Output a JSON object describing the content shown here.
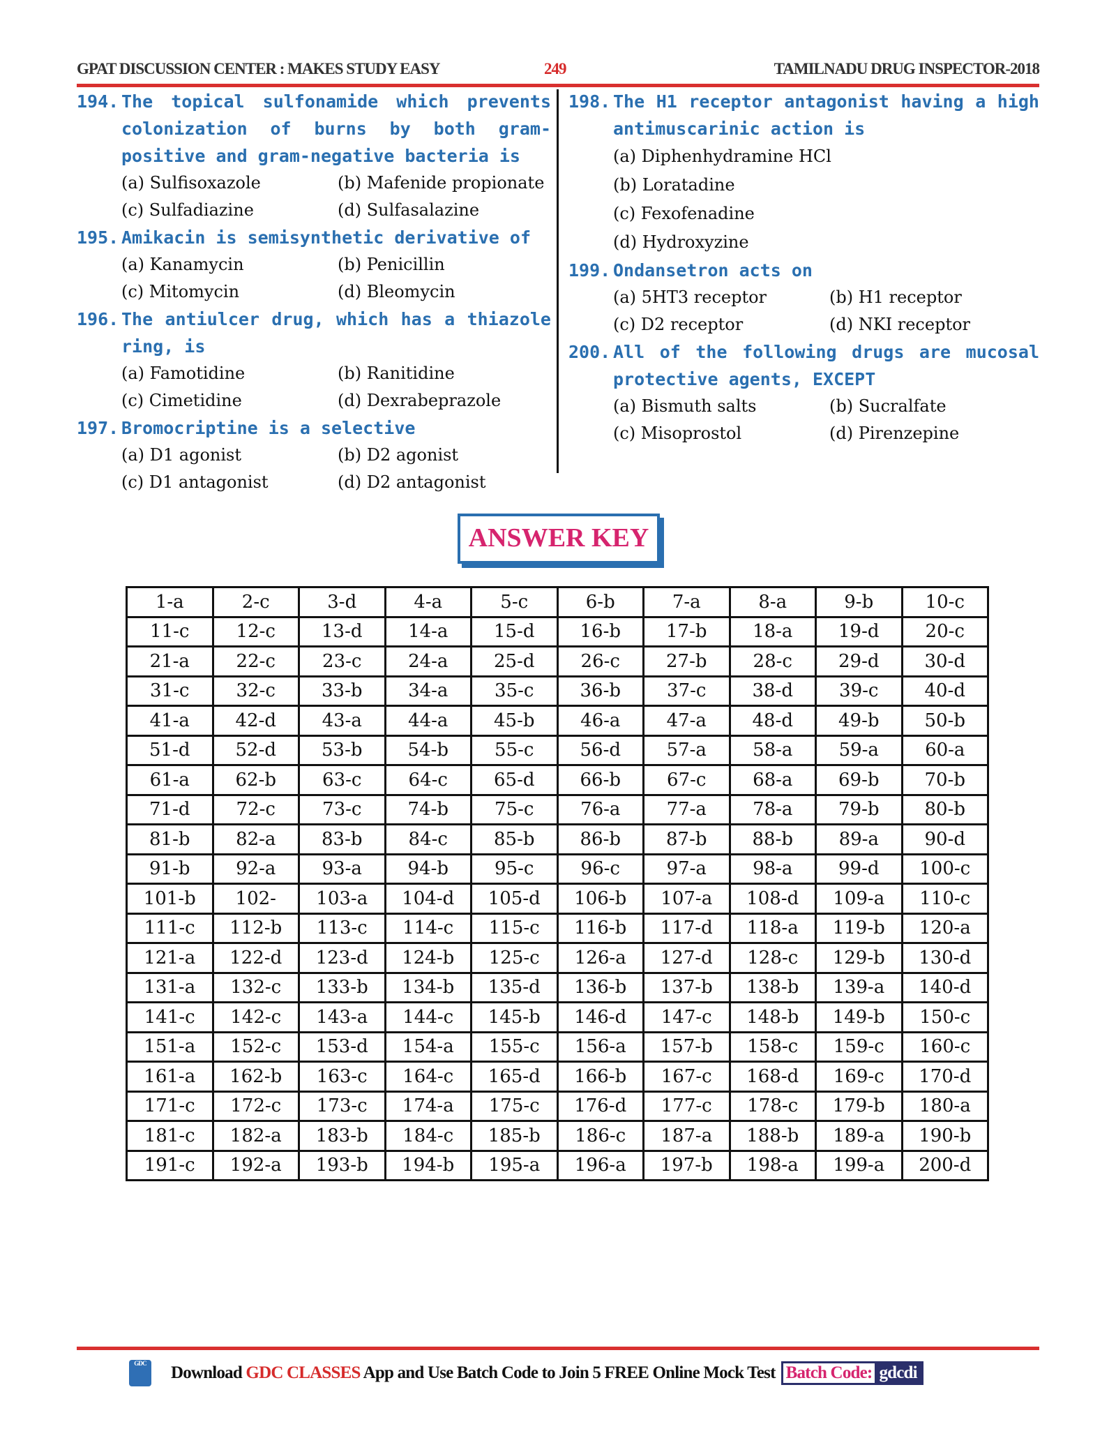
{
  "header": {
    "left": "GPAT DISCUSSION CENTER : MAKES STUDY EASY",
    "page": "249",
    "right": "TAMILNADU DRUG INSPECTOR-2018"
  },
  "questions_left": [
    {
      "num": "194.",
      "text": "The topical sulfonamide which prevents colonization of burns by both gram-positive and gram-negative bacteria is",
      "options": [
        "(a) Sulfisoxazole",
        "(b) Mafenide propionate",
        "(c) Sulfadiazine",
        "(d) Sulfasalazine"
      ]
    },
    {
      "num": "195.",
      "text": "Amikacin is semisynthetic derivative of",
      "options": [
        "(a) Kanamycin",
        "(b) Penicillin",
        "(c) Mitomycin",
        "(d) Bleomycin"
      ]
    },
    {
      "num": "196.",
      "text": "The antiulcer drug, which has a thiazole ring, is",
      "options": [
        "(a) Famotidine",
        "(b) Ranitidine",
        "(c) Cimetidine",
        "(d) Dexrabeprazole"
      ]
    },
    {
      "num": "197.",
      "text": "Bromocriptine is a selective",
      "options": [
        "(a) D1 agonist",
        "(b) D2 agonist",
        "(c) D1 antagonist",
        "(d) D2 antagonist"
      ]
    }
  ],
  "questions_right": [
    {
      "num": "198.",
      "text": "The H1 receptor antagonist having a high antimuscarinic action is",
      "options": [
        "(a) Diphenhydramine HCl",
        "(b) Loratadine",
        "(c) Fexofenadine",
        "(d) Hydroxyzine"
      ]
    },
    {
      "num": "199.",
      "text": "Ondansetron acts on",
      "options": [
        "(a) 5HT3 receptor",
        "(b) H1 receptor",
        "(c) D2 receptor",
        "(d) NKI receptor"
      ]
    },
    {
      "num": "200.",
      "text": "All of the following drugs are mucosal protective agents, EXCEPT",
      "options": [
        "(a) Bismuth salts",
        "(b) Sucralfate",
        "(c) Misoprostol",
        "(d) Pirenzepine"
      ]
    }
  ],
  "answer_key_title": "ANSWER KEY",
  "answers": [
    [
      "1-a",
      "2-c",
      "3-d",
      "4-a",
      "5-c",
      "6-b",
      "7-a",
      "8-a",
      "9-b",
      "10-c"
    ],
    [
      "11-c",
      "12-c",
      "13-d",
      "14-a",
      "15-d",
      "16-b",
      "17-b",
      "18-a",
      "19-d",
      "20-c"
    ],
    [
      "21-a",
      "22-c",
      "23-c",
      "24-a",
      "25-d",
      "26-c",
      "27-b",
      "28-c",
      "29-d",
      "30-d"
    ],
    [
      "31-c",
      "32-c",
      "33-b",
      "34-a",
      "35-c",
      "36-b",
      "37-c",
      "38-d",
      "39-c",
      "40-d"
    ],
    [
      "41-a",
      "42-d",
      "43-a",
      "44-a",
      "45-b",
      "46-a",
      "47-a",
      "48-d",
      "49-b",
      "50-b"
    ],
    [
      "51-d",
      "52-d",
      "53-b",
      "54-b",
      "55-c",
      "56-d",
      "57-a",
      "58-a",
      "59-a",
      "60-a"
    ],
    [
      "61-a",
      "62-b",
      "63-c",
      "64-c",
      "65-d",
      "66-b",
      "67-c",
      "68-a",
      "69-b",
      "70-b"
    ],
    [
      "71-d",
      "72-c",
      "73-c",
      "74-b",
      "75-c",
      "76-a",
      "77-a",
      "78-a",
      "79-b",
      "80-b"
    ],
    [
      "81-b",
      "82-a",
      "83-b",
      "84-c",
      "85-b",
      "86-b",
      "87-b",
      "88-b",
      "89-a",
      "90-d"
    ],
    [
      "91-b",
      "92-a",
      "93-a",
      "94-b",
      "95-c",
      "96-c",
      "97-a",
      "98-a",
      "99-d",
      "100-c"
    ],
    [
      "101-b",
      "102-",
      "103-a",
      "104-d",
      "105-d",
      "106-b",
      "107-a",
      "108-d",
      "109-a",
      "110-c"
    ],
    [
      "111-c",
      "112-b",
      "113-c",
      "114-c",
      "115-c",
      "116-b",
      "117-d",
      "118-a",
      "119-b",
      "120-a"
    ],
    [
      "121-a",
      "122-d",
      "123-d",
      "124-b",
      "125-c",
      "126-a",
      "127-d",
      "128-c",
      "129-b",
      "130-d"
    ],
    [
      "131-a",
      "132-c",
      "133-b",
      "134-b",
      "135-d",
      "136-b",
      "137-b",
      "138-b",
      "139-a",
      "140-d"
    ],
    [
      "141-c",
      "142-c",
      "143-a",
      "144-c",
      "145-b",
      "146-d",
      "147-c",
      "148-b",
      "149-b",
      "150-c"
    ],
    [
      "151-a",
      "152-c",
      "153-d",
      "154-a",
      "155-c",
      "156-a",
      "157-b",
      "158-c",
      "159-c",
      "160-c"
    ],
    [
      "161-a",
      "162-b",
      "163-c",
      "164-c",
      "165-d",
      "166-b",
      "167-c",
      "168-d",
      "169-c",
      "170-d"
    ],
    [
      "171-c",
      "172-c",
      "173-c",
      "174-a",
      "175-c",
      "176-d",
      "177-c",
      "178-c",
      "179-b",
      "180-a"
    ],
    [
      "181-c",
      "182-a",
      "183-b",
      "184-c",
      "185-b",
      "186-c",
      "187-a",
      "188-b",
      "189-a",
      "190-b"
    ],
    [
      "191-c",
      "192-a",
      "193-b",
      "194-b",
      "195-a",
      "196-a",
      "197-b",
      "198-a",
      "199-a",
      "200-d"
    ]
  ],
  "footer": {
    "logo": "GDC",
    "pre": "Download ",
    "brand": "GDC CLASSES",
    "post": " App and Use Batch Code to Join 5 FREE Online Mock Test",
    "batch_label": "Batch Code:",
    "batch_value": "gdcdi"
  },
  "colors": {
    "question": "#2a6fb0",
    "accent_red": "#d9302f",
    "answer_key_title": "#d6246e"
  }
}
